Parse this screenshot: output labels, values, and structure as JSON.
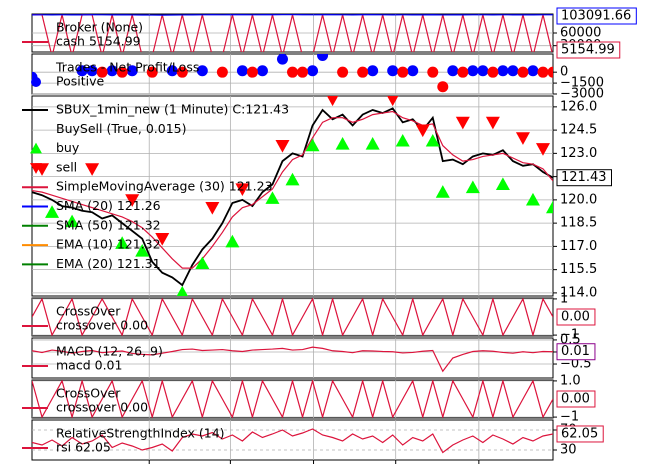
{
  "chart_data": [
    {
      "type": "line",
      "title": "Broker (None)",
      "ylim": [
        15000,
        105000
      ],
      "yticks": [
        30000,
        60000
      ],
      "series": [
        {
          "name": "cash 5154.99",
          "color": "#dc143c",
          "tag": "5154.99",
          "tag_color": "#dc143c",
          "values": [
            103100,
            103100,
            5155,
            103100,
            5155,
            103100,
            103100,
            5155,
            103100,
            5155,
            103100,
            5155,
            5155,
            103100,
            5155,
            103100,
            5155,
            103100,
            5155,
            5155,
            103100,
            5155,
            103100,
            5155,
            103100,
            5155,
            103100,
            5155,
            5155,
            103100,
            5155,
            103100,
            5155,
            103100,
            5155,
            103100,
            5155,
            103100,
            5155,
            103100,
            5155,
            103100,
            5155,
            103100,
            5155,
            103100,
            5155,
            103100,
            5155,
            103100,
            5155,
            103100,
            5154.99
          ]
        },
        {
          "color": "#0000ff",
          "tag": "103091.66",
          "tag_color": "#0000ff",
          "values": [
            103000,
            103050,
            102900,
            103100,
            102950,
            103000,
            103200,
            103100,
            102900,
            103000,
            102800,
            102700,
            102500,
            102400,
            102600,
            102800,
            103000,
            103100,
            103200,
            103100,
            103300,
            103200,
            103100,
            103250,
            103300,
            103400,
            103350,
            103200,
            103100,
            103300,
            103200,
            103100,
            103000,
            103150,
            103200,
            103100,
            103000,
            103050,
            102900,
            103000,
            103200,
            102800,
            102900,
            103000,
            103100,
            103050,
            103000,
            103100,
            103000,
            102950,
            103000,
            103050,
            103091.66
          ]
        }
      ]
    },
    {
      "type": "scatter",
      "title": "Trades - Net Profit/Loss",
      "ylim": [
        -3000,
        2500
      ],
      "yticks": [
        0,
        {
          "value": -1500,
          "label": "−1500"
        },
        {
          "value": -3000,
          "label": "−3000"
        }
      ],
      "series": [
        {
          "name": "Positive",
          "color": "#0000ff",
          "marker": "circle",
          "x": [
            0,
            5,
            6,
            8,
            10,
            14,
            17,
            21,
            23,
            25,
            28,
            29,
            34,
            36,
            38,
            42,
            44,
            45,
            47,
            48,
            50
          ],
          "values": [
            -700,
            200,
            200,
            200,
            200,
            200,
            200,
            200,
            200,
            1800,
            200,
            2300,
            200,
            200,
            200,
            200,
            200,
            200,
            200,
            200,
            200
          ]
        },
        {
          "color": "#ff0000",
          "marker": "circle",
          "x": [
            7,
            9,
            12,
            15,
            19,
            22,
            26,
            27,
            31,
            33,
            37,
            40,
            41,
            43,
            46,
            49,
            51,
            52
          ],
          "values": [
            0,
            0,
            0,
            0,
            0,
            0,
            0,
            0,
            0,
            0,
            0,
            0,
            -2000,
            0,
            0,
            0,
            0,
            0
          ]
        }
      ]
    },
    {
      "type": "line",
      "ylim": [
        113.8,
        126.7
      ],
      "yticks": [
        {
          "value": 126,
          "label": "126.0"
        },
        124.5,
        {
          "value": 123,
          "label": "123.0"
        },
        121.5,
        {
          "value": 120,
          "label": "120.0"
        },
        118.5,
        {
          "value": 117,
          "label": "117.0"
        },
        115.5,
        {
          "value": 114,
          "label": "114.0"
        }
      ],
      "xticks": [
        11.7,
        19.8,
        28.1,
        36.3,
        44.6
      ],
      "xlim": [
        0,
        52
      ],
      "grid": true,
      "series": [
        {
          "name": "SBUX_1min_new (1 Minute) C:121.43",
          "color": "#000000",
          "tag": "121.43",
          "tag_color": "#000000",
          "values": [
            120.5,
            120.3,
            120.0,
            119.6,
            119.5,
            119.3,
            119.2,
            118.8,
            119.0,
            118.5,
            118.0,
            117.5,
            116.0,
            115.3,
            115.0,
            114.5,
            115.8,
            116.8,
            117.5,
            118.5,
            119.8,
            120.0,
            119.6,
            120.5,
            121.0,
            122.5,
            123.0,
            122.8,
            124.8,
            125.8,
            125.2,
            125.5,
            124.8,
            125.5,
            125.8,
            125.6,
            125.9,
            125.0,
            125.2,
            124.5,
            125.3,
            122.5,
            122.6,
            122.3,
            122.8,
            123.0,
            122.9,
            123.2,
            122.5,
            122.2,
            122.3,
            121.8,
            121.43
          ]
        },
        {
          "name": "SimpleMovingAverage (30) 121.23",
          "color": "#dc143c",
          "values": [
            120.6,
            120.5,
            120.3,
            120.1,
            119.9,
            119.7,
            119.5,
            119.3,
            119.1,
            118.9,
            118.6,
            118.2,
            117.6,
            116.9,
            116.2,
            115.6,
            115.6,
            116.2,
            117.0,
            117.9,
            118.9,
            119.5,
            119.7,
            120.2,
            120.7,
            121.8,
            122.6,
            122.9,
            124.0,
            125.0,
            125.3,
            125.3,
            125.0,
            125.2,
            125.5,
            125.6,
            125.7,
            125.3,
            125.1,
            124.8,
            124.9,
            123.5,
            122.9,
            122.5,
            122.6,
            122.8,
            122.9,
            123.0,
            122.7,
            122.4,
            122.3,
            122.0,
            121.23
          ]
        },
        {
          "name": "SMA (20) 121.26",
          "color": "#0000ff"
        },
        {
          "name": "SMA (50) 121.32",
          "color": "#008000"
        },
        {
          "name": "EMA (10) 121.32",
          "color": "#ff8c00"
        },
        {
          "name": "EMA (20) 121.31",
          "color": "#008000"
        }
      ],
      "buysell": {
        "title": "BuySell (True, 0.015)",
        "buy": {
          "name": "buy",
          "color": "#00ff00",
          "marker": "triangle-up",
          "x": [
            2,
            4,
            9,
            11,
            15,
            17,
            20,
            24,
            26,
            28,
            31,
            34,
            37,
            40,
            41,
            44,
            47,
            50,
            52
          ],
          "values": [
            119.2,
            118.6,
            117.2,
            116.7,
            114.0,
            115.9,
            117.3,
            120.1,
            121.3,
            123.5,
            123.6,
            123.6,
            123.8,
            123.8,
            120.5,
            120.8,
            121.0,
            120.0,
            119.5
          ]
        },
        "sell": {
          "name": "sell",
          "color": "#ff0000",
          "marker": "triangle-down",
          "x": [
            1,
            6,
            10,
            13,
            18,
            21,
            25,
            30,
            36,
            39,
            43,
            46,
            49,
            51
          ],
          "values": [
            122.0,
            122.0,
            120.0,
            117.5,
            119.5,
            120.7,
            123.5,
            126.5,
            126.5,
            124.5,
            125.0,
            125.0,
            124.0,
            123.3
          ]
        }
      }
    },
    {
      "type": "line",
      "title": "CrossOver",
      "ylim": [
        -1.05,
        1.05
      ],
      "yticks": [
        1,
        {
          "value": -1,
          "label": "−1"
        }
      ],
      "series": [
        {
          "name": "crossover 0.00",
          "color": "#dc143c",
          "tag": "0.00",
          "tag_color": "#dc143c",
          "values": [
            0,
            1,
            -1,
            0,
            1,
            -1,
            0,
            1,
            0,
            -1,
            1,
            0,
            -1,
            1,
            0,
            -1,
            1,
            0,
            -1,
            1,
            0,
            -1,
            1,
            0,
            -1,
            1,
            -1,
            0,
            1,
            -1,
            1,
            -1,
            0,
            1,
            -1,
            1,
            0,
            -1,
            1,
            -1,
            0,
            1,
            -1,
            1,
            0,
            -1,
            1,
            -1,
            0,
            1,
            -1,
            1,
            0
          ]
        }
      ]
    },
    {
      "type": "line",
      "title": "MACD (12, 26, 9)",
      "ylim": [
        -1.08,
        0.58
      ],
      "yticks": [
        0.5,
        {
          "value": 0,
          "label": "0.0"
        },
        {
          "value": -0.5,
          "label": "−0.5"
        }
      ],
      "series": [
        {
          "name": "macd 0.01",
          "color": "#dc143c",
          "tag": "0.01",
          "tag_color": "#8b008b",
          "values": [
            0.05,
            -0.02,
            0.08,
            0.03,
            -0.05,
            0.02,
            0.06,
            -0.03,
            0.01,
            0.04,
            -0.06,
            -0.1,
            -0.12,
            -0.05,
            0.02,
            0.1,
            0.12,
            0.06,
            0.08,
            0.1,
            0.05,
            0.02,
            0.08,
            0.1,
            0.12,
            0.15,
            0.08,
            0.1,
            0.2,
            0.15,
            0.05,
            0.02,
            -0.03,
            0.05,
            0.04,
            0.02,
            0.01,
            -0.04,
            -0.02,
            0.03,
            0.06,
            -0.8,
            -0.25,
            -0.1,
            0.02,
            0.05,
            0.03,
            -0.02,
            -0.05,
            0.01,
            -0.03,
            0.02,
            0.01
          ]
        }
      ]
    },
    {
      "type": "line",
      "title": "CrossOver",
      "ylim": [
        -1.05,
        1.05
      ],
      "yticks": [
        {
          "value": 1,
          "label": "1.0"
        },
        {
          "value": -1,
          "label": "−1"
        }
      ],
      "series": [
        {
          "name": "crossover 0.00",
          "color": "#dc143c",
          "tag": "0.00",
          "tag_color": "#dc143c",
          "values": [
            1,
            -1,
            0,
            1,
            -1,
            1,
            -1,
            0,
            1,
            -1,
            0,
            1,
            -1,
            1,
            -1,
            0,
            1,
            -1,
            1,
            0,
            -1,
            1,
            -1,
            1,
            0,
            -1,
            1,
            -1,
            1,
            -1,
            1,
            0,
            -1,
            1,
            -1,
            1,
            -1,
            0,
            1,
            -1,
            1,
            -1,
            1,
            0,
            -1,
            1,
            -1,
            1,
            -1,
            0,
            1,
            -1,
            0
          ]
        }
      ]
    },
    {
      "type": "line",
      "title": "RelativeStrengthIndex (14)",
      "ylim": [
        10,
        90
      ],
      "yticks": [
        70,
        30
      ],
      "dashed_grid": true,
      "series": [
        {
          "name": "rsi 62.05",
          "color": "#dc143c",
          "tag": "62.05",
          "tag_color": "#dc143c",
          "values": [
            45,
            40,
            50,
            38,
            55,
            42,
            48,
            60,
            35,
            44,
            38,
            30,
            35,
            42,
            28,
            55,
            62,
            58,
            65,
            52,
            60,
            48,
            66,
            55,
            62,
            70,
            58,
            64,
            72,
            60,
            55,
            48,
            62,
            52,
            58,
            45,
            60,
            40,
            55,
            48,
            62,
            25,
            40,
            50,
            58,
            45,
            60,
            52,
            42,
            55,
            48,
            58,
            62.05
          ]
        }
      ]
    }
  ]
}
